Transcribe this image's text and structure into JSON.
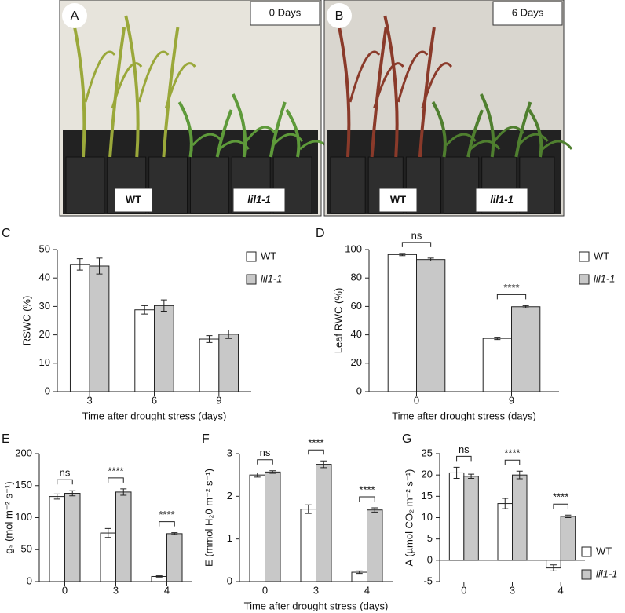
{
  "photos": [
    {
      "panel": "A",
      "tag": "0 Days",
      "labels": [
        "WT",
        "lil1-1"
      ]
    },
    {
      "panel": "B",
      "tag": "6 Days",
      "labels": [
        "WT",
        "lil1-1"
      ]
    }
  ],
  "chart_data": [
    {
      "type": "bar",
      "panel": "C",
      "ylabel": "RSWC (%)",
      "xlabel": "Time after drought stress (days)",
      "categories": [
        "3",
        "6",
        "9"
      ],
      "ylim": [
        0,
        50
      ],
      "yticks": [
        0,
        10,
        20,
        30,
        40,
        50
      ],
      "legend": true,
      "series": [
        {
          "name": "WT",
          "color": "#ffffff",
          "values": [
            44.8,
            28.8,
            18.5
          ],
          "errors": [
            2.0,
            1.5,
            1.2
          ]
        },
        {
          "name": "lil1-1",
          "color": "#c8c8c8",
          "values": [
            44.2,
            30.3,
            20.2
          ],
          "errors": [
            2.8,
            2.0,
            1.5
          ]
        }
      ]
    },
    {
      "type": "bar",
      "panel": "D",
      "ylabel": "Leaf RWC (%)",
      "xlabel": "Time after drought stress (days)",
      "categories": [
        "0",
        "9"
      ],
      "ylim": [
        0,
        100
      ],
      "yticks": [
        0,
        20,
        40,
        60,
        80,
        100
      ],
      "legend": true,
      "significance": [
        "ns",
        "****"
      ],
      "series": [
        {
          "name": "WT",
          "color": "#ffffff",
          "values": [
            96.5,
            37.5
          ],
          "errors": [
            0.8,
            0.8
          ]
        },
        {
          "name": "lil1-1",
          "color": "#c8c8c8",
          "values": [
            93,
            59.8
          ],
          "errors": [
            1.0,
            0.8
          ]
        }
      ]
    },
    {
      "type": "bar",
      "panel": "E",
      "ylabel": "gₛ (mol m⁻² s⁻¹)",
      "categories": [
        "0",
        "3",
        "4"
      ],
      "ylim": [
        0,
        200
      ],
      "yticks": [
        0,
        50,
        100,
        150,
        200
      ],
      "legend": false,
      "significance": [
        "ns",
        "****",
        "****"
      ],
      "series": [
        {
          "name": "WT",
          "color": "#ffffff",
          "values": [
            133,
            76,
            8
          ],
          "errors": [
            4,
            7,
            1
          ]
        },
        {
          "name": "lil1-1",
          "color": "#c8c8c8",
          "values": [
            138,
            140,
            75
          ],
          "errors": [
            4,
            5,
            1.5
          ]
        }
      ]
    },
    {
      "type": "bar",
      "panel": "F",
      "ylabel": "E (mmol H₂0 m⁻² s⁻¹)",
      "xlabel": "Time after drought stress (days)",
      "categories": [
        "0",
        "3",
        "4"
      ],
      "ylim": [
        0,
        3
      ],
      "yticks": [
        0,
        1,
        2,
        3
      ],
      "legend": false,
      "significance": [
        "ns",
        "****",
        "****"
      ],
      "series": [
        {
          "name": "WT",
          "color": "#ffffff",
          "values": [
            2.5,
            1.7,
            0.22
          ],
          "errors": [
            0.05,
            0.1,
            0.03
          ]
        },
        {
          "name": "lil1-1",
          "color": "#c8c8c8",
          "values": [
            2.57,
            2.75,
            1.68
          ],
          "errors": [
            0.03,
            0.08,
            0.05
          ]
        }
      ]
    },
    {
      "type": "bar",
      "panel": "G",
      "ylabel": "A (µmol CO₂ m⁻² s⁻¹)",
      "categories": [
        "0",
        "3",
        "4"
      ],
      "ylim": [
        -5,
        25
      ],
      "yticks": [
        -5,
        0,
        5,
        10,
        15,
        20,
        25
      ],
      "legend": true,
      "significance": [
        "ns",
        "****",
        "****"
      ],
      "series": [
        {
          "name": "WT",
          "color": "#ffffff",
          "values": [
            20.5,
            13.3,
            -1.8
          ],
          "errors": [
            1.3,
            1.2,
            0.7
          ]
        },
        {
          "name": "lil1-1",
          "color": "#c8c8c8",
          "values": [
            19.7,
            20,
            10.3
          ],
          "errors": [
            0.5,
            0.9,
            0.3
          ]
        }
      ]
    }
  ]
}
